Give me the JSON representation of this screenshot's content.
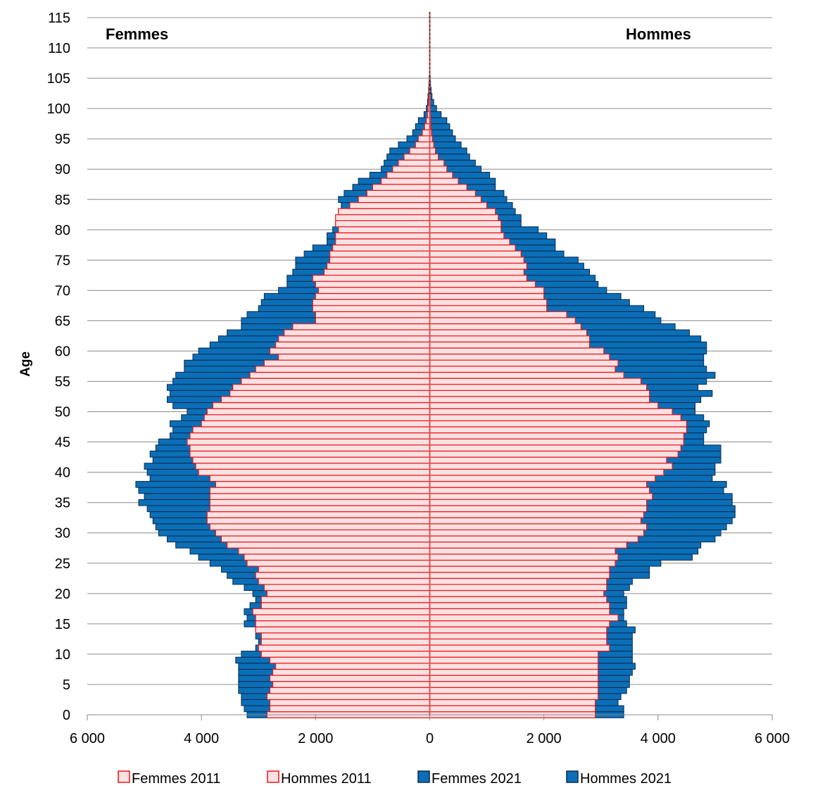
{
  "chart_data": {
    "type": "bar",
    "orientation": "horizontal-pyramid",
    "labels": {
      "left_sex": "Femmes",
      "right_sex": "Hommes"
    },
    "ylabel": "Age",
    "xlim": [
      -6000,
      6000
    ],
    "ylim": [
      0,
      115
    ],
    "x_ticks": [
      "6 000",
      "4 000",
      "2 000",
      "0",
      "2 000",
      "4 000",
      "6 000"
    ],
    "x_tick_values": [
      -6000,
      -4000,
      -2000,
      0,
      2000,
      4000,
      6000
    ],
    "y_ticks": [
      "0",
      "5",
      "10",
      "15",
      "20",
      "25",
      "30",
      "35",
      "40",
      "45",
      "50",
      "55",
      "60",
      "65",
      "70",
      "75",
      "80",
      "85",
      "90",
      "95",
      "100",
      "105",
      "110",
      "115"
    ],
    "y_tick_values": [
      0,
      5,
      10,
      15,
      20,
      25,
      30,
      35,
      40,
      45,
      50,
      55,
      60,
      65,
      70,
      75,
      80,
      85,
      90,
      95,
      100,
      105,
      110,
      115
    ],
    "grid": "horizontal",
    "legend_position": "bottom",
    "colors": {
      "fill_2011": "#fbe1e1",
      "stroke_2011": "#e8161b",
      "fill_2021": "#0b6fb8",
      "stroke_2021": "#0b2a4a",
      "center_line": "#e05050",
      "grid": "#8c8c8c"
    },
    "age_start": 0,
    "series": [
      {
        "name": "Femmes 2011",
        "side": "left",
        "values": [
          2850,
          2800,
          2800,
          2850,
          2800,
          2750,
          2800,
          2750,
          2700,
          2800,
          2950,
          3000,
          2950,
          2950,
          3050,
          3050,
          3050,
          3100,
          2950,
          2950,
          2850,
          2900,
          3000,
          3050,
          3000,
          3200,
          3250,
          3350,
          3550,
          3650,
          3750,
          3850,
          3900,
          3900,
          3850,
          3850,
          3850,
          3850,
          3750,
          3850,
          4050,
          4100,
          4150,
          4200,
          4200,
          4250,
          4200,
          4150,
          4000,
          3950,
          3900,
          3800,
          3650,
          3500,
          3450,
          3300,
          3150,
          3050,
          2900,
          2650,
          2800,
          2700,
          2650,
          2550,
          2400,
          2000,
          2000,
          2050,
          2050,
          2000,
          1950,
          2000,
          2050,
          1850,
          1800,
          1750,
          1750,
          1700,
          1650,
          1650,
          1600,
          1650,
          1650,
          1600,
          1400,
          1250,
          1100,
          1000,
          850,
          750,
          650,
          550,
          450,
          350,
          250,
          200,
          130,
          90,
          60,
          40,
          30,
          20,
          15,
          10,
          8,
          5,
          3,
          2,
          1
        ]
      },
      {
        "name": "Hommes 2011",
        "side": "right",
        "values": [
          2900,
          2900,
          2900,
          2950,
          2950,
          2950,
          2950,
          2950,
          2950,
          2950,
          2950,
          3150,
          3100,
          3100,
          3100,
          3150,
          3300,
          3150,
          3150,
          3100,
          3050,
          3100,
          3100,
          3150,
          3150,
          3250,
          3300,
          3250,
          3450,
          3650,
          3750,
          3800,
          3700,
          3750,
          3800,
          3800,
          3900,
          3850,
          3800,
          3950,
          4100,
          4250,
          4150,
          4350,
          4400,
          4450,
          4450,
          4500,
          4500,
          4400,
          4250,
          4000,
          3850,
          3850,
          3800,
          3700,
          3400,
          3250,
          3300,
          3150,
          3050,
          2800,
          2800,
          2750,
          2650,
          2550,
          2400,
          2050,
          2050,
          2000,
          2000,
          1850,
          1700,
          1650,
          1700,
          1650,
          1600,
          1500,
          1400,
          1300,
          1250,
          1250,
          1200,
          1150,
          1000,
          900,
          800,
          650,
          500,
          400,
          300,
          250,
          150,
          100,
          70,
          45,
          30,
          20,
          15,
          10,
          8,
          6,
          4,
          3,
          2,
          1,
          1,
          0,
          0
        ]
      },
      {
        "name": "Femmes 2021",
        "side": "left",
        "values": [
          3200,
          3250,
          3300,
          3300,
          3350,
          3350,
          3350,
          3350,
          3350,
          3400,
          3300,
          3050,
          3000,
          3050,
          3050,
          3250,
          3200,
          3250,
          3150,
          3050,
          3100,
          3250,
          3450,
          3550,
          3650,
          3850,
          4050,
          4200,
          4450,
          4600,
          4750,
          4800,
          4850,
          4900,
          4950,
          5100,
          5000,
          5100,
          5150,
          4900,
          4950,
          5000,
          4850,
          4900,
          4800,
          4750,
          4550,
          4500,
          4550,
          4350,
          4250,
          4500,
          4600,
          4550,
          4600,
          4500,
          4450,
          4300,
          4300,
          4150,
          4050,
          3850,
          3700,
          3550,
          3300,
          3300,
          3200,
          3000,
          2950,
          2900,
          2650,
          2500,
          2500,
          2400,
          2350,
          2350,
          2200,
          2050,
          1800,
          1800,
          1700,
          1650,
          1550,
          1600,
          1550,
          1600,
          1500,
          1350,
          1250,
          1050,
          850,
          800,
          750,
          700,
          550,
          400,
          300,
          250,
          200,
          100,
          60,
          40,
          30,
          20,
          15,
          10,
          5,
          3,
          2
        ]
      },
      {
        "name": "Hommes 2021",
        "side": "right",
        "values": [
          3400,
          3400,
          3300,
          3350,
          3450,
          3500,
          3500,
          3550,
          3600,
          3550,
          3550,
          3550,
          3550,
          3550,
          3600,
          3450,
          3400,
          3400,
          3450,
          3450,
          3400,
          3500,
          3550,
          3850,
          3850,
          4050,
          4600,
          4700,
          4750,
          5000,
          5100,
          5200,
          5300,
          5350,
          5350,
          5300,
          5300,
          5150,
          5200,
          4950,
          5000,
          5000,
          5100,
          5100,
          5100,
          4800,
          4800,
          4850,
          4900,
          4800,
          4650,
          4650,
          4750,
          4950,
          4700,
          4850,
          5000,
          4850,
          4800,
          4800,
          4850,
          4850,
          4750,
          4550,
          4300,
          4050,
          3950,
          3750,
          3500,
          3350,
          3100,
          2950,
          2900,
          2800,
          2700,
          2600,
          2350,
          2200,
          2200,
          2050,
          1900,
          1600,
          1600,
          1500,
          1450,
          1350,
          1300,
          1150,
          1150,
          1050,
          900,
          800,
          700,
          650,
          550,
          450,
          400,
          350,
          300,
          200,
          120,
          70,
          40,
          25,
          15,
          10,
          6,
          3,
          2
        ]
      }
    ]
  }
}
